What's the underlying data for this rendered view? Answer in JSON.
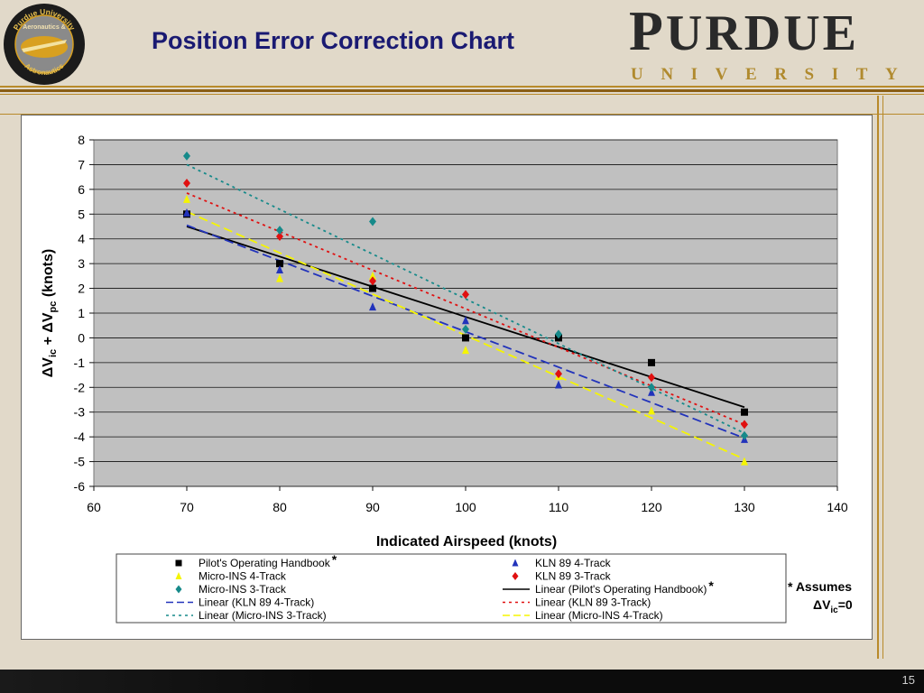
{
  "slide": {
    "title": "Position Error Correction Chart",
    "logo_top_text": "Purdue University",
    "logo_mid_text": "Aeronautics &",
    "logo_bottom_text": "Astronautics",
    "brand_first": "P",
    "brand_rest": "URDUE",
    "brand_sub": "UNIVERSITY",
    "page_number": "15",
    "colors": {
      "background": "#e1d9c9",
      "title": "#1a1a72",
      "gold": "#b08a2e",
      "plot_bg": "#c0c0c0"
    }
  },
  "footnote": {
    "line1": "* Assumes",
    "line2_prefix": "ΔV",
    "line2_sub": "ic",
    "line2_suffix": "=0"
  },
  "chart_data": {
    "type": "scatter",
    "xlabel": "Indicated Airspeed (knots)",
    "ylabel": "ΔVic + ΔVpc (knots)",
    "ylabel_parts": {
      "d1": "ΔV",
      "s1": "ic",
      "plus": " + ",
      "d2": "ΔV",
      "s2": "pc",
      "unit": " (knots)"
    },
    "xlim": [
      60,
      140
    ],
    "ylim": [
      -6,
      8
    ],
    "x_ticks": [
      60,
      70,
      80,
      90,
      100,
      110,
      120,
      130,
      140
    ],
    "y_ticks": [
      8,
      7,
      6,
      5,
      4,
      3,
      2,
      1,
      0,
      -1,
      -2,
      -3,
      -4,
      -5,
      -6
    ],
    "grid": "horizontal",
    "legend_position": "bottom",
    "series": [
      {
        "name": "Pilot's Operating Handbook",
        "marker": "square",
        "color": "#000000",
        "x": [
          70,
          80,
          90,
          100,
          110,
          120,
          130
        ],
        "y": [
          5,
          3,
          2,
          0,
          0,
          -1,
          -3
        ]
      },
      {
        "name": "KLN 89 4-Track",
        "marker": "triangle",
        "color": "#2233bb",
        "x": [
          70,
          80,
          90,
          100,
          110,
          120,
          130
        ],
        "y": [
          5.05,
          2.75,
          1.25,
          0.7,
          -1.9,
          -2.2,
          -4.1
        ]
      },
      {
        "name": "Micro-INS 4-Track",
        "marker": "triangle",
        "color": "#f5f500",
        "x": [
          70,
          80,
          90,
          100,
          110,
          120,
          130
        ],
        "y": [
          5.6,
          2.4,
          2.5,
          -0.5,
          -1.55,
          -2.95,
          -5.0
        ]
      },
      {
        "name": "KLN 89 3-Track",
        "marker": "diamond",
        "color": "#e01010",
        "x": [
          70,
          80,
          90,
          100,
          110,
          120,
          130
        ],
        "y": [
          6.25,
          4.1,
          2.3,
          1.75,
          -1.45,
          -1.6,
          -3.5
        ]
      },
      {
        "name": "Micro-INS 3-Track",
        "marker": "diamond",
        "color": "#168a8a",
        "x": [
          70,
          80,
          90,
          100,
          110,
          120,
          130
        ],
        "y": [
          7.35,
          4.35,
          4.7,
          0.35,
          0.15,
          -2.0,
          -3.95
        ]
      }
    ],
    "trendlines": [
      {
        "name": "Linear (Pilot's Operating Handbook)",
        "color": "#000000",
        "dash": "solid",
        "x": [
          70,
          130
        ],
        "y": [
          4.5,
          -2.8
        ]
      },
      {
        "name": "Linear (KLN 89 4-Track)",
        "color": "#2233bb",
        "dash": "long",
        "x": [
          70,
          130
        ],
        "y": [
          4.55,
          -4.05
        ]
      },
      {
        "name": "Linear (KLN 89 3-Track)",
        "color": "#e01010",
        "dash": "short",
        "x": [
          70,
          130
        ],
        "y": [
          5.85,
          -3.5
        ]
      },
      {
        "name": "Linear (Micro-INS 3-Track)",
        "color": "#168a8a",
        "dash": "short",
        "x": [
          70,
          130
        ],
        "y": [
          7.0,
          -3.85
        ]
      },
      {
        "name": "Linear (Micro-INS 4-Track)",
        "color": "#f5f500",
        "dash": "long",
        "x": [
          70,
          130
        ],
        "y": [
          5.1,
          -4.9
        ]
      }
    ],
    "legend": {
      "left": [
        {
          "label": "Pilot's Operating Handbook",
          "kind": "square",
          "color": "#000000",
          "star": true
        },
        {
          "label": "Micro-INS 4-Track",
          "kind": "triangle",
          "color": "#f5f500",
          "star": false
        },
        {
          "label": "Micro-INS 3-Track",
          "kind": "diamond",
          "color": "#168a8a",
          "star": false
        },
        {
          "label": "Linear (KLN 89 4-Track)",
          "kind": "line-long",
          "color": "#2233bb",
          "star": false
        },
        {
          "label": "Linear (Micro-INS 3-Track)",
          "kind": "line-short",
          "color": "#168a8a",
          "star": false
        }
      ],
      "right": [
        {
          "label": "KLN 89 4-Track",
          "kind": "triangle",
          "color": "#2233bb",
          "star": false
        },
        {
          "label": "KLN 89 3-Track",
          "kind": "diamond",
          "color": "#e01010",
          "star": false
        },
        {
          "label": "Linear (Pilot's Operating Handbook)",
          "kind": "line-solid",
          "color": "#000000",
          "star": true
        },
        {
          "label": "Linear (KLN 89 3-Track)",
          "kind": "line-short",
          "color": "#e01010",
          "star": false
        },
        {
          "label": "Linear (Micro-INS 4-Track)",
          "kind": "line-long",
          "color": "#f5f500",
          "star": false
        }
      ],
      "star_symbol": "*"
    }
  }
}
